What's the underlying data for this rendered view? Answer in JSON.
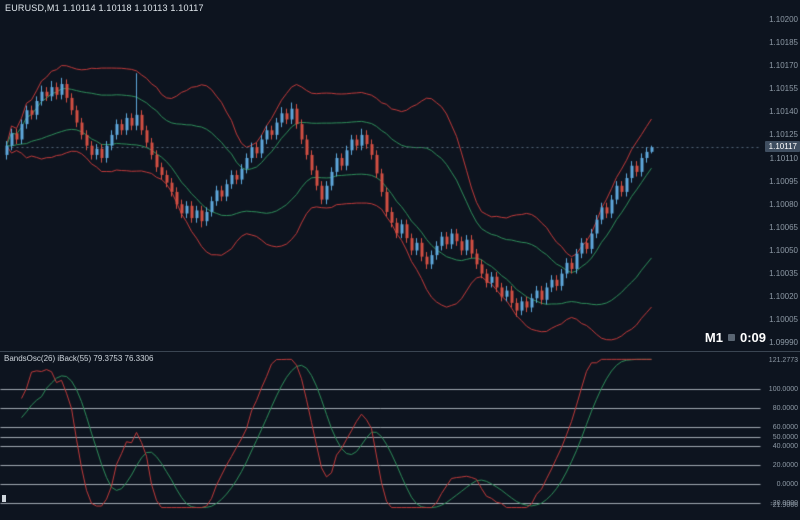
{
  "colors": {
    "background": "#0d141f",
    "bull_candle": "#5fa8dc",
    "bear_candle": "#d24f43",
    "outer_band": "#c23b3b",
    "inner_band": "#2f8f5b",
    "osc_fast": "#c23b3b",
    "osc_slow": "#2f8f5b",
    "level_line": "rgba(225,233,242,0.7)",
    "axis_text": "#8e9aa6",
    "price_line": "#55677a",
    "price_tag_bg": "#3f4e60"
  },
  "header": {
    "line": "EURUSD,M1  1.10114 1.10118 1.10113 1.10117",
    "symbol": "EURUSD",
    "timeframe": "M1",
    "open": "1.10114",
    "high": "1.10118",
    "low": "1.10113",
    "close": "1.10117"
  },
  "main_chart": {
    "current_price": "1.10117",
    "timeframe": "M1",
    "countdown": "0:09",
    "price_axis_ticks": [
      "1.10200",
      "1.10185",
      "1.10170",
      "1.10155",
      "1.10140",
      "1.10125",
      "1.10110",
      "1.10095",
      "1.10080",
      "1.10065",
      "1.10050",
      "1.10035",
      "1.10020",
      "1.10005",
      "1.09990"
    ]
  },
  "indicator": {
    "label": "BandsOsc(26) iBack(55) 79.3753 76.3306",
    "last_fast": "79.3753",
    "last_slow": "76.3306",
    "levels": [
      100,
      80,
      60,
      50,
      40,
      20,
      0,
      -20
    ],
    "level_labels": [
      "100.0000",
      "80.0000",
      "60.0000",
      "50.0000",
      "40.0000",
      "20.0000",
      "0.0000",
      "-20.0000"
    ],
    "max_label": "121.2773",
    "min_label": "-21.9066",
    "range": [
      -25,
      135
    ]
  },
  "chart_data": {
    "type": "candlestick",
    "symbol": "EURUSD",
    "timeframe": "M1",
    "price_scale": {
      "min": 1.09989,
      "max": 1.10207
    },
    "bands": {
      "period": 20,
      "inner_dev": 1.05,
      "outer_dev": 2.2
    },
    "oscillator": {
      "period": 26,
      "smooth": 8
    },
    "candles_points": [
      [
        110112,
        110121,
        110109,
        110118
      ],
      [
        110118,
        110129,
        110115,
        110126
      ],
      [
        110126,
        110129,
        110119,
        110122
      ],
      [
        110122,
        110135,
        110119,
        110132
      ],
      [
        110132,
        110144,
        110129,
        110141
      ],
      [
        110141,
        110144,
        110135,
        110138
      ],
      [
        110138,
        110150,
        110135,
        110147
      ],
      [
        110147,
        110157,
        110144,
        110153
      ],
      [
        110153,
        110156,
        110147,
        110150
      ],
      [
        110150,
        110160,
        110147,
        110156
      ],
      [
        110156,
        110159,
        110148,
        110151
      ],
      [
        110151,
        110162,
        110148,
        110158
      ],
      [
        110158,
        110161,
        110146,
        110149
      ],
      [
        110149,
        110152,
        110138,
        110141
      ],
      [
        110141,
        110144,
        110130,
        110133
      ],
      [
        110133,
        110136,
        110122,
        110125
      ],
      [
        110125,
        110128,
        110115,
        110118
      ],
      [
        110118,
        110121,
        110109,
        110112
      ],
      [
        110112,
        110119,
        110109,
        110116
      ],
      [
        110116,
        110119,
        110107,
        110110
      ],
      [
        110110,
        110121,
        110107,
        110118
      ],
      [
        110118,
        110128,
        110115,
        110125
      ],
      [
        110125,
        110135,
        110122,
        110132
      ],
      [
        110132,
        110135,
        110125,
        110128
      ],
      [
        110128,
        110139,
        110125,
        110136
      ],
      [
        110136,
        110139,
        110128,
        110131
      ],
      [
        110131,
        110165,
        110128,
        110138
      ],
      [
        110138,
        110141,
        110125,
        110128
      ],
      [
        110128,
        110131,
        110117,
        110120
      ],
      [
        110120,
        110123,
        110109,
        110112
      ],
      [
        110112,
        110115,
        110101,
        110104
      ],
      [
        110104,
        110107,
        110096,
        110099
      ],
      [
        110099,
        110102,
        110091,
        110094
      ],
      [
        110094,
        110097,
        110085,
        110088
      ],
      [
        110088,
        110091,
        110077,
        110080
      ],
      [
        110080,
        110083,
        110071,
        110074
      ],
      [
        110074,
        110082,
        110071,
        110079
      ],
      [
        110079,
        110082,
        110068,
        110071
      ],
      [
        110071,
        110079,
        110068,
        110076
      ],
      [
        110076,
        110079,
        110065,
        110069
      ],
      [
        110069,
        110078,
        110066,
        110075
      ],
      [
        110075,
        110085,
        110072,
        110082
      ],
      [
        110082,
        110092,
        110079,
        110089
      ],
      [
        110089,
        110092,
        110082,
        110085
      ],
      [
        110085,
        110096,
        110082,
        110093
      ],
      [
        110093,
        110102,
        110090,
        110099
      ],
      [
        110099,
        110102,
        110093,
        110096
      ],
      [
        110096,
        110106,
        110093,
        110103
      ],
      [
        110103,
        110113,
        110100,
        110110
      ],
      [
        110110,
        110120,
        110107,
        110117
      ],
      [
        110117,
        110120,
        110110,
        110113
      ],
      [
        110113,
        110125,
        110110,
        110122
      ],
      [
        110122,
        110131,
        110119,
        110128
      ],
      [
        110128,
        110131,
        110122,
        110125
      ],
      [
        110125,
        110136,
        110122,
        110133
      ],
      [
        110133,
        110143,
        110130,
        110139
      ],
      [
        110139,
        110142,
        110132,
        110135
      ],
      [
        110135,
        110146,
        110132,
        110142
      ],
      [
        110142,
        110145,
        110129,
        110132
      ],
      [
        110132,
        110135,
        110119,
        110122
      ],
      [
        110122,
        110125,
        110109,
        110112
      ],
      [
        110112,
        110115,
        110099,
        110102
      ],
      [
        110102,
        110105,
        110089,
        110092
      ],
      [
        110092,
        110095,
        110080,
        110083
      ],
      [
        110083,
        110095,
        110080,
        110092
      ],
      [
        110092,
        110104,
        110089,
        110101
      ],
      [
        110101,
        110113,
        110098,
        110110
      ],
      [
        110110,
        110113,
        110102,
        110105
      ],
      [
        110105,
        110118,
        110102,
        110115
      ],
      [
        110115,
        110125,
        110112,
        110122
      ],
      [
        110122,
        110125,
        110115,
        110118
      ],
      [
        110118,
        110129,
        110115,
        110125
      ],
      [
        110125,
        110128,
        110116,
        110119
      ],
      [
        110119,
        110122,
        110109,
        110112
      ],
      [
        110112,
        110115,
        110097,
        110100
      ],
      [
        110100,
        110103,
        110085,
        110088
      ],
      [
        110088,
        110091,
        110072,
        110075
      ],
      [
        110075,
        110078,
        110065,
        110068
      ],
      [
        110068,
        110071,
        110058,
        110061
      ],
      [
        110061,
        110070,
        110058,
        110067
      ],
      [
        110067,
        110070,
        110055,
        110058
      ],
      [
        110058,
        110061,
        110047,
        110050
      ],
      [
        110050,
        110058,
        110047,
        110055
      ],
      [
        110055,
        110058,
        110043,
        110046
      ],
      [
        110046,
        110049,
        110038,
        110041
      ],
      [
        110041,
        110050,
        110038,
        110047
      ],
      [
        110047,
        110056,
        110044,
        110053
      ],
      [
        110053,
        110062,
        110050,
        110059
      ],
      [
        110059,
        110062,
        110051,
        110054
      ],
      [
        110054,
        110064,
        110051,
        110061
      ],
      [
        110061,
        110064,
        110053,
        110056
      ],
      [
        110056,
        110059,
        110047,
        110050
      ],
      [
        110050,
        110060,
        110047,
        110057
      ],
      [
        110057,
        110060,
        110045,
        110048
      ],
      [
        110048,
        110051,
        110038,
        110041
      ],
      [
        110041,
        110044,
        110032,
        110035
      ],
      [
        110035,
        110038,
        110026,
        110029
      ],
      [
        110029,
        110036,
        110026,
        110033
      ],
      [
        110033,
        110036,
        110023,
        110026
      ],
      [
        110026,
        110029,
        110017,
        110020
      ],
      [
        110020,
        110027,
        110017,
        110024
      ],
      [
        110024,
        110027,
        110013,
        110016
      ],
      [
        110016,
        110019,
        110007,
        110011
      ],
      [
        110011,
        110020,
        110008,
        110017
      ],
      [
        110017,
        110020,
        110010,
        110013
      ],
      [
        110013,
        110022,
        110010,
        110019
      ],
      [
        110019,
        110027,
        110016,
        110024
      ],
      [
        110024,
        110027,
        110015,
        110018
      ],
      [
        110018,
        110029,
        110015,
        110026
      ],
      [
        110026,
        110034,
        110023,
        110031
      ],
      [
        110031,
        110034,
        110024,
        110027
      ],
      [
        110027,
        110038,
        110024,
        110035
      ],
      [
        110035,
        110045,
        110032,
        110042
      ],
      [
        110042,
        110045,
        110035,
        110038
      ],
      [
        110038,
        110051,
        110035,
        110048
      ],
      [
        110048,
        110058,
        110045,
        110055
      ],
      [
        110055,
        110058,
        110048,
        110051
      ],
      [
        110051,
        110064,
        110048,
        110061
      ],
      [
        110061,
        110073,
        110058,
        110070
      ],
      [
        110070,
        110081,
        110067,
        110078
      ],
      [
        110078,
        110081,
        110071,
        110074
      ],
      [
        110074,
        110086,
        110071,
        110083
      ],
      [
        110083,
        110095,
        110080,
        110092
      ],
      [
        110092,
        110095,
        110085,
        110088
      ],
      [
        110088,
        110100,
        110085,
        110097
      ],
      [
        110097,
        110108,
        110094,
        110105
      ],
      [
        110105,
        110108,
        110098,
        110101
      ],
      [
        110101,
        110113,
        110098,
        110110
      ],
      [
        110110,
        110117,
        110107,
        110114
      ],
      [
        110114,
        110118,
        110113,
        110117
      ]
    ]
  }
}
